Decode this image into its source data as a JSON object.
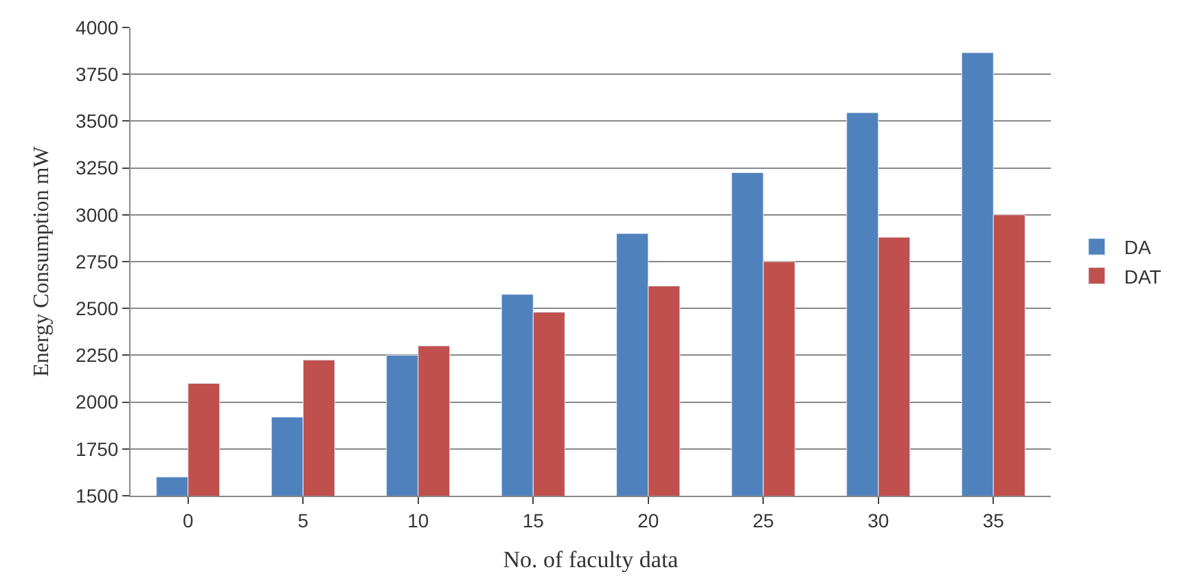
{
  "chart_data": {
    "type": "bar",
    "xlabel": "No. of faculty data",
    "ylabel": "Energy Consumption mW",
    "categories": [
      "0",
      "5",
      "10",
      "15",
      "20",
      "25",
      "30",
      "35"
    ],
    "series": [
      {
        "name": "DA",
        "color": "#4f81bd",
        "values": [
          1600,
          1920,
          2250,
          2575,
          2900,
          3225,
          3545,
          3865
        ]
      },
      {
        "name": "DAT",
        "color": "#c0504d",
        "values": [
          2100,
          2225,
          2300,
          2480,
          2620,
          2750,
          2880,
          3000
        ]
      }
    ],
    "ylim": [
      1500,
      4000
    ],
    "yticks": [
      1500,
      1750,
      2000,
      2250,
      2500,
      2750,
      3000,
      3250,
      3500,
      3750,
      4000
    ],
    "grid": "y",
    "legend": "right"
  }
}
